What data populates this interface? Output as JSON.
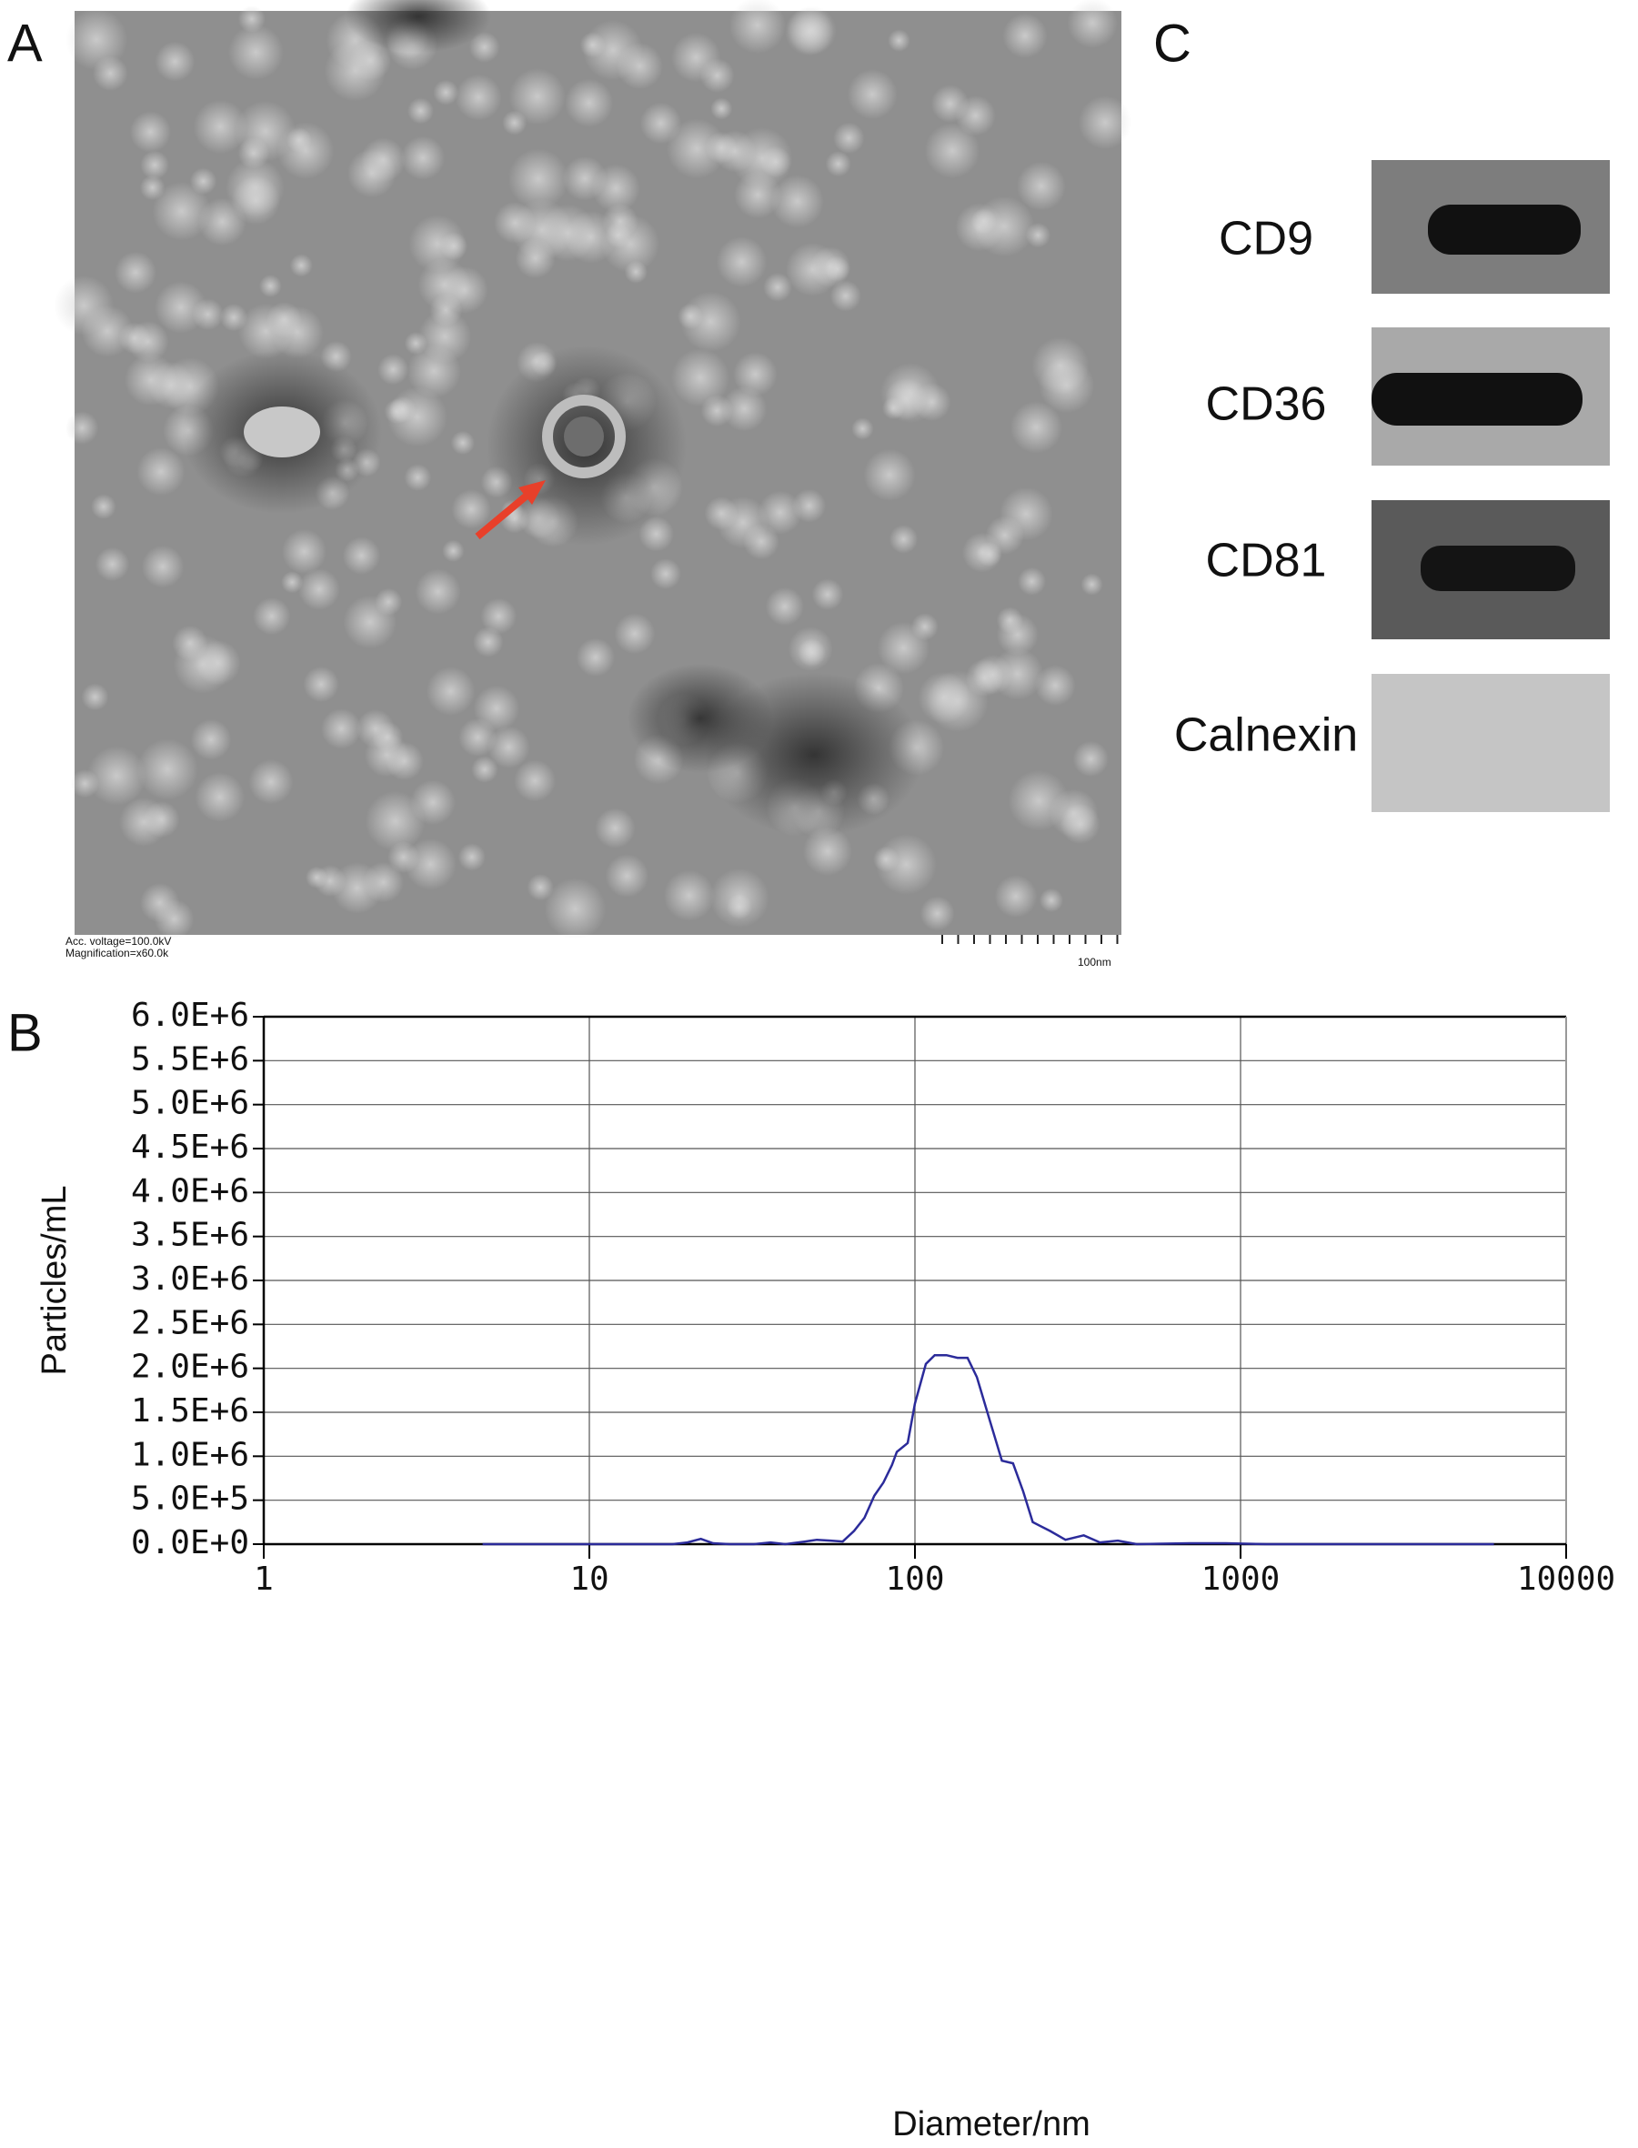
{
  "panels": {
    "a": "A",
    "b": "B",
    "c": "C"
  },
  "tem": {
    "voltage": "Acc. voltage=100.0kV",
    "magnification": "Magnification=x60.0k",
    "scale": "100nm"
  },
  "blot": {
    "labels": [
      "CD9",
      "CD36",
      "CD81",
      "Calnexin"
    ]
  },
  "chart_data": {
    "type": "line",
    "xlabel": "Diameter/nm",
    "ylabel": "Particles/mL",
    "x": [
      4.7,
      10,
      18,
      20,
      22,
      24,
      27,
      32,
      36,
      40,
      46,
      50,
      55,
      60,
      65,
      70,
      75,
      80,
      85,
      88,
      95,
      100,
      108,
      115,
      125,
      135,
      145,
      155,
      170,
      185,
      200,
      215,
      230,
      260,
      290,
      330,
      370,
      420,
      480,
      700,
      900,
      1200,
      6000
    ],
    "values": [
      0,
      0,
      0,
      20000,
      60000,
      10000,
      0,
      0,
      20000,
      0,
      30000,
      50000,
      40000,
      30000,
      150000,
      300000,
      550000,
      700000,
      900000,
      1050000,
      1150000,
      1600000,
      2050000,
      2150000,
      2150000,
      2120000,
      2120000,
      1900000,
      1400000,
      950000,
      920000,
      600000,
      250000,
      150000,
      50000,
      100000,
      20000,
      40000,
      0,
      10000,
      10000,
      0,
      0
    ],
    "color": "#2b2b9a",
    "log_x": true,
    "grid": true,
    "xlim": [
      1,
      10000
    ],
    "xticks": [
      1,
      10,
      100,
      1000,
      10000
    ],
    "ylim": [
      0,
      6000000
    ],
    "yticks": [
      {
        "value": 0,
        "label": "0.0E+0"
      },
      {
        "value": 500000,
        "label": "5.0E+5"
      },
      {
        "value": 1000000,
        "label": "1.0E+6"
      },
      {
        "value": 1500000,
        "label": "1.5E+6"
      },
      {
        "value": 2000000,
        "label": "2.0E+6"
      },
      {
        "value": 2500000,
        "label": "2.5E+6"
      },
      {
        "value": 3000000,
        "label": "3.0E+6"
      },
      {
        "value": 3500000,
        "label": "3.5E+6"
      },
      {
        "value": 4000000,
        "label": "4.0E+6"
      },
      {
        "value": 4500000,
        "label": "4.5E+6"
      },
      {
        "value": 5000000,
        "label": "5.0E+6"
      },
      {
        "value": 5500000,
        "label": "5.5E+6"
      },
      {
        "value": 6000000,
        "label": "6.0E+6"
      }
    ]
  }
}
